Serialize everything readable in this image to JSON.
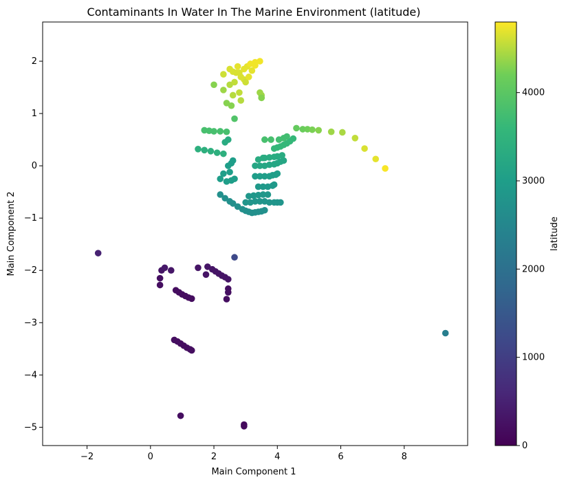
{
  "chart_data": {
    "type": "scatter",
    "title": "Contaminants In Water In The Marine Environment (latitude)",
    "xlabel": "Main Component 1",
    "ylabel": "Main Component 2",
    "xlim": [
      -3.4,
      10.0
    ],
    "ylim": [
      -5.35,
      2.75
    ],
    "x_ticks": [
      -2,
      0,
      2,
      4,
      6,
      8
    ],
    "y_ticks": [
      -5,
      -4,
      -3,
      -2,
      -1,
      0,
      1,
      2
    ],
    "x_tick_labels": [
      "−2",
      "0",
      "2",
      "4",
      "6",
      "8"
    ],
    "y_tick_labels": [
      "−5",
      "−4",
      "−3",
      "−2",
      "−1",
      "0",
      "1",
      "2"
    ],
    "grid": false,
    "marker": "circle",
    "colorbar": {
      "label": "latitude",
      "colormap": "viridis",
      "range": [
        0,
        4800
      ],
      "ticks": [
        0,
        1000,
        2000,
        3000,
        4000
      ],
      "tick_labels": [
        "0",
        "1000",
        "2000",
        "3000",
        "4000"
      ]
    },
    "note_points": "columns: x, y, latitude",
    "points": [
      [
        9.3,
        -3.2,
        2300
      ],
      [
        2.65,
        -1.75,
        1200
      ],
      [
        0.95,
        -4.78,
        200
      ],
      [
        2.95,
        -4.95,
        150
      ],
      [
        2.95,
        -4.98,
        150
      ],
      [
        -1.65,
        -1.67,
        500
      ],
      [
        0.75,
        -3.33,
        200
      ],
      [
        0.85,
        -3.36,
        200
      ],
      [
        0.95,
        -3.4,
        200
      ],
      [
        1.05,
        -3.44,
        200
      ],
      [
        1.15,
        -3.48,
        200
      ],
      [
        1.25,
        -3.51,
        200
      ],
      [
        1.3,
        -3.53,
        200
      ],
      [
        0.8,
        -2.38,
        180
      ],
      [
        0.9,
        -2.42,
        180
      ],
      [
        1.0,
        -2.46,
        180
      ],
      [
        1.1,
        -2.49,
        180
      ],
      [
        1.2,
        -2.52,
        180
      ],
      [
        1.3,
        -2.54,
        180
      ],
      [
        0.3,
        -2.15,
        220
      ],
      [
        0.3,
        -2.28,
        200
      ],
      [
        0.35,
        -2.0,
        300
      ],
      [
        2.4,
        -2.55,
        200
      ],
      [
        2.45,
        -2.35,
        220
      ],
      [
        2.45,
        -2.42,
        220
      ],
      [
        1.8,
        -1.93,
        300
      ],
      [
        1.95,
        -1.98,
        300
      ],
      [
        2.05,
        -2.02,
        300
      ],
      [
        2.15,
        -2.06,
        300
      ],
      [
        2.25,
        -2.1,
        300
      ],
      [
        2.35,
        -2.13,
        300
      ],
      [
        2.45,
        -2.17,
        300
      ],
      [
        1.5,
        -1.95,
        300
      ],
      [
        1.75,
        -2.08,
        300
      ],
      [
        0.65,
        -2.0,
        320
      ],
      [
        0.45,
        -1.95,
        350
      ],
      [
        1.7,
        0.68,
        3800
      ],
      [
        1.85,
        0.67,
        3800
      ],
      [
        2.0,
        0.66,
        3800
      ],
      [
        2.2,
        0.66,
        3800
      ],
      [
        2.4,
        0.65,
        3800
      ],
      [
        1.5,
        0.32,
        3400
      ],
      [
        1.7,
        0.3,
        3400
      ],
      [
        1.9,
        0.28,
        3400
      ],
      [
        2.1,
        0.25,
        3400
      ],
      [
        2.3,
        0.23,
        3400
      ],
      [
        2.45,
        0.0,
        3000
      ],
      [
        2.55,
        0.05,
        3000
      ],
      [
        2.6,
        0.1,
        3000
      ],
      [
        2.35,
        0.45,
        3300
      ],
      [
        2.45,
        0.5,
        3300
      ],
      [
        2.65,
        0.9,
        3900
      ],
      [
        2.0,
        1.55,
        4300
      ],
      [
        2.3,
        1.45,
        4400
      ],
      [
        2.5,
        1.55,
        4500
      ],
      [
        2.65,
        1.6,
        4550
      ],
      [
        2.6,
        1.35,
        4500
      ],
      [
        2.8,
        1.4,
        4550
      ],
      [
        2.85,
        1.25,
        4500
      ],
      [
        2.3,
        1.75,
        4600
      ],
      [
        2.5,
        1.85,
        4650
      ],
      [
        2.6,
        1.8,
        4650
      ],
      [
        2.7,
        1.78,
        4650
      ],
      [
        2.8,
        1.78,
        4650
      ],
      [
        2.85,
        1.7,
        4650
      ],
      [
        2.95,
        1.65,
        4650
      ],
      [
        2.75,
        1.9,
        4700
      ],
      [
        2.95,
        1.85,
        4700
      ],
      [
        3.05,
        1.9,
        4700
      ],
      [
        3.15,
        1.95,
        4750
      ],
      [
        3.3,
        1.98,
        4750
      ],
      [
        3.45,
        2.0,
        4750
      ],
      [
        3.0,
        1.6,
        4600
      ],
      [
        3.1,
        1.7,
        4700
      ],
      [
        3.2,
        1.82,
        4700
      ],
      [
        3.3,
        1.92,
        4750
      ],
      [
        2.4,
        1.2,
        4300
      ],
      [
        2.55,
        1.15,
        4300
      ],
      [
        3.5,
        1.3,
        4400
      ],
      [
        3.5,
        1.35,
        4400
      ],
      [
        3.45,
        1.4,
        4400
      ],
      [
        3.5,
        1.3,
        4300
      ],
      [
        2.2,
        -0.25,
        3000
      ],
      [
        2.4,
        -0.3,
        3000
      ],
      [
        2.55,
        -0.28,
        3000
      ],
      [
        2.65,
        -0.25,
        3000
      ],
      [
        2.3,
        -0.15,
        3000
      ],
      [
        2.5,
        -0.12,
        3000
      ],
      [
        2.2,
        -0.55,
        2700
      ],
      [
        2.35,
        -0.62,
        2700
      ],
      [
        2.5,
        -0.68,
        2700
      ],
      [
        2.6,
        -0.72,
        2700
      ],
      [
        2.75,
        -0.78,
        2700
      ],
      [
        2.9,
        -0.83,
        2700
      ],
      [
        3.0,
        -0.86,
        2700
      ],
      [
        3.1,
        -0.88,
        2700
      ],
      [
        3.2,
        -0.9,
        2700
      ],
      [
        3.3,
        -0.89,
        2700
      ],
      [
        3.4,
        -0.88,
        2700
      ],
      [
        3.5,
        -0.87,
        2700
      ],
      [
        3.6,
        -0.85,
        2700
      ],
      [
        3.0,
        -0.7,
        2800
      ],
      [
        3.15,
        -0.7,
        2800
      ],
      [
        3.3,
        -0.68,
        2800
      ],
      [
        3.45,
        -0.68,
        2800
      ],
      [
        3.6,
        -0.68,
        2800
      ],
      [
        3.75,
        -0.7,
        2800
      ],
      [
        3.9,
        -0.7,
        2800
      ],
      [
        4.0,
        -0.7,
        2800
      ],
      [
        4.1,
        -0.7,
        2800
      ],
      [
        3.1,
        -0.58,
        2850
      ],
      [
        3.25,
        -0.57,
        2850
      ],
      [
        3.4,
        -0.56,
        2850
      ],
      [
        3.55,
        -0.55,
        2850
      ],
      [
        3.7,
        -0.55,
        2850
      ],
      [
        3.4,
        -0.4,
        2900
      ],
      [
        3.55,
        -0.4,
        2900
      ],
      [
        3.7,
        -0.4,
        2900
      ],
      [
        3.85,
        -0.38,
        2900
      ],
      [
        3.9,
        -0.36,
        2900
      ],
      [
        3.3,
        -0.2,
        3000
      ],
      [
        3.45,
        -0.2,
        3000
      ],
      [
        3.6,
        -0.2,
        3000
      ],
      [
        3.75,
        -0.2,
        3000
      ],
      [
        3.85,
        -0.18,
        3000
      ],
      [
        3.95,
        -0.17,
        3000
      ],
      [
        4.0,
        -0.15,
        3000
      ],
      [
        3.3,
        0.0,
        3200
      ],
      [
        3.45,
        0.0,
        3200
      ],
      [
        3.6,
        0.0,
        3200
      ],
      [
        3.75,
        0.02,
        3200
      ],
      [
        3.9,
        0.03,
        3200
      ],
      [
        4.0,
        0.05,
        3200
      ],
      [
        4.1,
        0.08,
        3200
      ],
      [
        4.2,
        0.1,
        3200
      ],
      [
        3.6,
        0.15,
        3300
      ],
      [
        3.75,
        0.16,
        3300
      ],
      [
        3.9,
        0.17,
        3300
      ],
      [
        4.0,
        0.18,
        3300
      ],
      [
        4.15,
        0.2,
        3300
      ],
      [
        3.4,
        0.12,
        3300
      ],
      [
        3.55,
        0.15,
        3300
      ],
      [
        3.9,
        0.33,
        3600
      ],
      [
        4.0,
        0.35,
        3600
      ],
      [
        4.1,
        0.37,
        3600
      ],
      [
        4.2,
        0.4,
        3600
      ],
      [
        4.3,
        0.43,
        3600
      ],
      [
        4.4,
        0.47,
        3600
      ],
      [
        4.5,
        0.52,
        3600
      ],
      [
        3.6,
        0.5,
        3800
      ],
      [
        3.8,
        0.5,
        3800
      ],
      [
        4.05,
        0.5,
        3750
      ],
      [
        4.2,
        0.53,
        3750
      ],
      [
        4.3,
        0.56,
        3750
      ],
      [
        4.6,
        0.72,
        4100
      ],
      [
        4.8,
        0.7,
        4150
      ],
      [
        4.95,
        0.7,
        4200
      ],
      [
        5.1,
        0.69,
        4250
      ],
      [
        5.3,
        0.68,
        4300
      ],
      [
        5.7,
        0.65,
        4400
      ],
      [
        6.05,
        0.64,
        4450
      ],
      [
        6.45,
        0.53,
        4550
      ],
      [
        6.75,
        0.33,
        4650
      ],
      [
        7.1,
        0.13,
        4700
      ],
      [
        7.4,
        -0.05,
        4780
      ]
    ]
  }
}
